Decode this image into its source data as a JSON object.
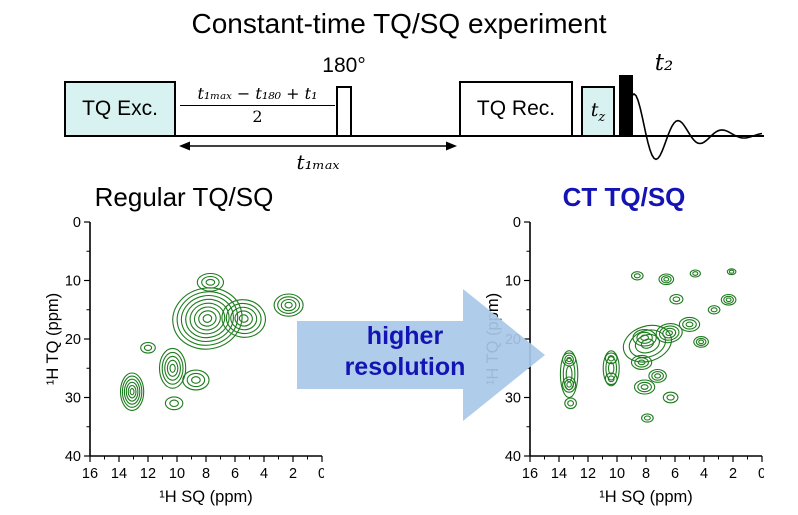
{
  "title": "Constant-time TQ/SQ experiment",
  "pulse_sequence": {
    "tq_exc": "TQ Exc.",
    "delay_numerator": "t₁ₘₐₓ − t₁₈₀ + t₁",
    "delay_denominator": "2",
    "pulse_180": "180°",
    "t1max": "t₁ₘₐₓ",
    "tq_rec": "TQ Rec.",
    "tz_base": "t",
    "tz_sub": "z",
    "t2": "t₂"
  },
  "arrow": {
    "line1": "higher",
    "line2": "resolution"
  },
  "colors": {
    "accent_blue": "#1414b4",
    "box_cyan": "#d7f2f0",
    "arrow_fill": "#a8c8e8",
    "contour_green": "#1e7b1e"
  },
  "chart_data": [
    {
      "type": "contour",
      "title": "Regular TQ/SQ",
      "xlabel": "¹H SQ (ppm)",
      "ylabel": "¹H TQ (ppm)",
      "xlim": [
        16,
        0
      ],
      "ylim": [
        0,
        40
      ],
      "x_ticks": [
        16,
        14,
        12,
        10,
        8,
        6,
        4,
        2,
        0
      ],
      "y_ticks": [
        0,
        10,
        20,
        30,
        40
      ],
      "grid": false,
      "contour_color": "#1e7b1e",
      "peaks": [
        {
          "sq": 7.9,
          "tq": 16.5,
          "rx": 2.4,
          "ry": 5.2,
          "levels": 8,
          "rot": -12
        },
        {
          "sq": 5.4,
          "tq": 16.5,
          "rx": 1.5,
          "ry": 3.2,
          "levels": 5,
          "rot": 8
        },
        {
          "sq": 2.3,
          "tq": 14.2,
          "rx": 1.0,
          "ry": 1.9,
          "levels": 4,
          "rot": 0
        },
        {
          "sq": 7.7,
          "tq": 10.3,
          "rx": 0.9,
          "ry": 1.5,
          "levels": 3,
          "rot": 0
        },
        {
          "sq": 10.3,
          "tq": 25.0,
          "rx": 0.9,
          "ry": 3.4,
          "levels": 5,
          "rot": 0
        },
        {
          "sq": 13.1,
          "tq": 29.0,
          "rx": 0.8,
          "ry": 3.2,
          "levels": 6,
          "rot": 0
        },
        {
          "sq": 8.7,
          "tq": 27.0,
          "rx": 0.9,
          "ry": 1.7,
          "levels": 3,
          "rot": 0
        },
        {
          "sq": 10.2,
          "tq": 31.0,
          "rx": 0.6,
          "ry": 1.1,
          "levels": 2,
          "rot": 0
        },
        {
          "sq": 12.0,
          "tq": 21.5,
          "rx": 0.5,
          "ry": 0.9,
          "levels": 2,
          "rot": 0
        }
      ]
    },
    {
      "type": "contour",
      "title": "CT TQ/SQ",
      "xlabel": "¹H SQ (ppm)",
      "ylabel": "¹H TQ (ppm)",
      "xlim": [
        16,
        0
      ],
      "ylim": [
        0,
        40
      ],
      "x_ticks": [
        16,
        14,
        12,
        10,
        8,
        6,
        4,
        2,
        0
      ],
      "y_ticks": [
        0,
        10,
        20,
        30,
        40
      ],
      "grid": false,
      "contour_color": "#1e7b1e",
      "peaks": [
        {
          "sq": 13.3,
          "tq": 26.0,
          "rx": 0.6,
          "ry": 4.0,
          "levels": 3,
          "rot": 0
        },
        {
          "sq": 13.3,
          "tq": 23.5,
          "rx": 0.45,
          "ry": 1.1,
          "levels": 3,
          "rot": 0
        },
        {
          "sq": 13.3,
          "tq": 27.8,
          "rx": 0.45,
          "ry": 1.3,
          "levels": 3,
          "rot": 0
        },
        {
          "sq": 13.2,
          "tq": 31.0,
          "rx": 0.4,
          "ry": 0.9,
          "levels": 2,
          "rot": 0
        },
        {
          "sq": 10.4,
          "tq": 25.0,
          "rx": 0.55,
          "ry": 3.0,
          "levels": 3,
          "rot": 0
        },
        {
          "sq": 10.4,
          "tq": 23.3,
          "rx": 0.4,
          "ry": 0.9,
          "levels": 2,
          "rot": 0
        },
        {
          "sq": 10.4,
          "tq": 26.8,
          "rx": 0.4,
          "ry": 1.0,
          "levels": 2,
          "rot": 0
        },
        {
          "sq": 7.9,
          "tq": 20.8,
          "rx": 1.7,
          "ry": 3.0,
          "levels": 4,
          "rot": -18
        },
        {
          "sq": 8.1,
          "tq": 19.8,
          "rx": 0.8,
          "ry": 1.4,
          "levels": 3,
          "rot": 0
        },
        {
          "sq": 6.4,
          "tq": 19.0,
          "rx": 0.9,
          "ry": 1.6,
          "levels": 4,
          "rot": -10
        },
        {
          "sq": 5.0,
          "tq": 17.5,
          "rx": 0.7,
          "ry": 1.2,
          "levels": 3,
          "rot": 0
        },
        {
          "sq": 4.2,
          "tq": 20.5,
          "rx": 0.5,
          "ry": 0.9,
          "levels": 3,
          "rot": 0
        },
        {
          "sq": 8.3,
          "tq": 24.0,
          "rx": 0.7,
          "ry": 1.2,
          "levels": 3,
          "rot": 0
        },
        {
          "sq": 7.2,
          "tq": 26.3,
          "rx": 0.6,
          "ry": 1.1,
          "levels": 3,
          "rot": 0
        },
        {
          "sq": 8.1,
          "tq": 28.2,
          "rx": 0.7,
          "ry": 1.2,
          "levels": 3,
          "rot": 0
        },
        {
          "sq": 6.3,
          "tq": 30.0,
          "rx": 0.5,
          "ry": 0.9,
          "levels": 2,
          "rot": 0
        },
        {
          "sq": 2.3,
          "tq": 13.3,
          "rx": 0.5,
          "ry": 0.9,
          "levels": 3,
          "rot": 0
        },
        {
          "sq": 3.3,
          "tq": 15.0,
          "rx": 0.4,
          "ry": 0.7,
          "levels": 2,
          "rot": 0
        },
        {
          "sq": 5.9,
          "tq": 13.2,
          "rx": 0.45,
          "ry": 0.8,
          "levels": 2,
          "rot": 0
        },
        {
          "sq": 6.6,
          "tq": 9.8,
          "rx": 0.5,
          "ry": 0.9,
          "levels": 3,
          "rot": 0
        },
        {
          "sq": 8.6,
          "tq": 9.2,
          "rx": 0.4,
          "ry": 0.7,
          "levels": 2,
          "rot": 0
        },
        {
          "sq": 4.6,
          "tq": 8.8,
          "rx": 0.35,
          "ry": 0.6,
          "levels": 2,
          "rot": 0
        },
        {
          "sq": 2.1,
          "tq": 8.5,
          "rx": 0.3,
          "ry": 0.5,
          "levels": 2,
          "rot": 0
        },
        {
          "sq": 7.9,
          "tq": 33.5,
          "rx": 0.4,
          "ry": 0.7,
          "levels": 2,
          "rot": 0
        }
      ]
    }
  ]
}
